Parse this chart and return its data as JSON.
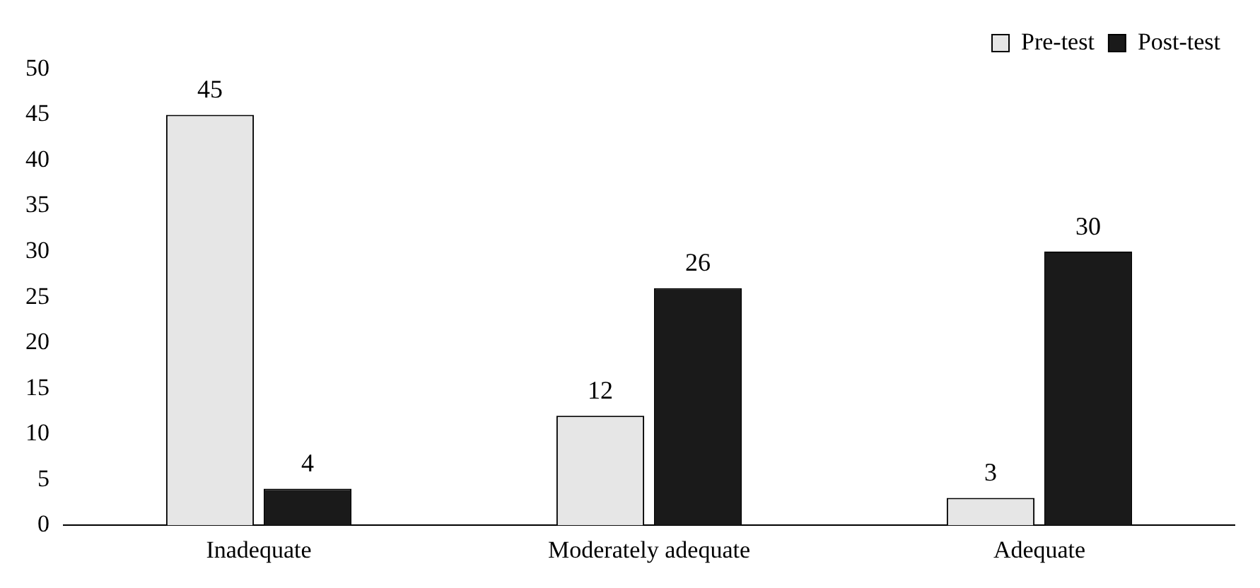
{
  "chart_data": {
    "type": "bar",
    "categories": [
      "Inadequate",
      "Moderately adequate",
      "Adequate"
    ],
    "series": [
      {
        "name": "Pre-test",
        "color": "#e6e6e6",
        "values": [
          45,
          12,
          3
        ]
      },
      {
        "name": "Post-test",
        "color": "#1a1a1a",
        "values": [
          4,
          26,
          30
        ]
      }
    ],
    "ylim": [
      0,
      50
    ],
    "yticks": [
      0,
      5,
      10,
      15,
      20,
      25,
      30,
      35,
      40,
      45,
      50
    ],
    "grid": false,
    "legend": "top right",
    "data_labels": true
  }
}
